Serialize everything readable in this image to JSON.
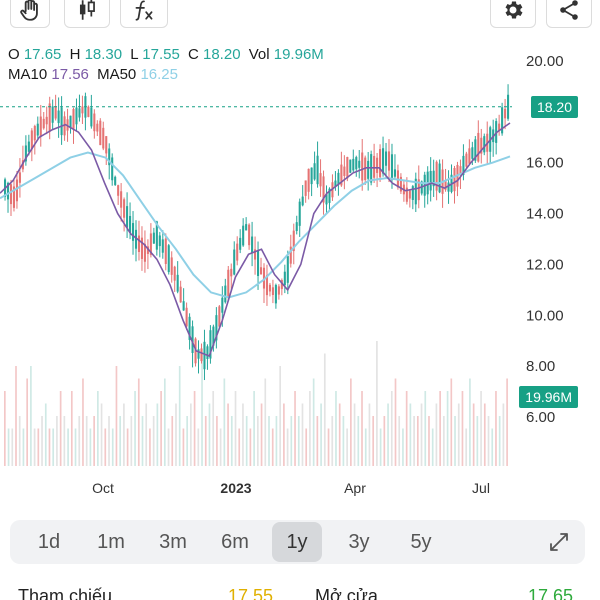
{
  "toolbar": {
    "tools": [
      {
        "icon": "hand-pan-icon"
      },
      {
        "icon": "candlestick-icon"
      },
      {
        "icon": "function-fx-icon"
      },
      {
        "icon": "gear-icon"
      },
      {
        "icon": "share-icon"
      }
    ]
  },
  "legend": {
    "o_label": "O",
    "o_value": "17.65",
    "h_label": "H",
    "h_value": "18.30",
    "l_label": "L",
    "l_value": "17.55",
    "c_label": "C",
    "c_value": "18.20",
    "vol_label": "Vol",
    "vol_value": "19.96M",
    "ma10_label": "MA10",
    "ma10_value": "17.56",
    "ma50_label": "MA50",
    "ma50_value": "16.25"
  },
  "price_tag": "18.20",
  "volume_tag": "19.96M",
  "colors": {
    "up": "#26a69a",
    "down": "#e57373",
    "ma10": "#7b5aa6",
    "ma50": "#8fd0e6",
    "accent": "#17a085"
  },
  "ranges": {
    "items": [
      "1d",
      "1m",
      "3m",
      "6m",
      "1y",
      "3y",
      "5y"
    ],
    "active": "1y"
  },
  "bottom": {
    "ref_label": "Tham chiếu",
    "ref_value": "17.55",
    "open_label": "Mở cửa",
    "open_value": "17.65"
  },
  "chart_data": {
    "type": "candlestick",
    "y_ticks": [
      "20.00",
      "16.00",
      "14.00",
      "12.00",
      "10.00",
      "8.00",
      "6.00"
    ],
    "y_tick_values": [
      20,
      16,
      14,
      12,
      10,
      8,
      6
    ],
    "ylim": [
      4,
      21
    ],
    "x_ticks": [
      "Oct",
      "2023",
      "Apr",
      "Jul"
    ],
    "last_close": 18.2,
    "close_path": [
      15.0,
      14.6,
      16.3,
      17.2,
      17.6,
      18.0,
      17.4,
      17.8,
      18.2,
      17.5,
      16.8,
      15.2,
      14.0,
      13.0,
      12.4,
      13.2,
      12.5,
      11.5,
      10.0,
      8.5,
      8.4,
      9.5,
      11.0,
      12.4,
      13.5,
      12.2,
      11.2,
      10.8,
      11.6,
      13.5,
      15.2,
      15.8,
      14.5,
      15.3,
      15.8,
      16.0,
      15.7,
      15.9,
      16.2,
      15.4,
      14.7,
      14.9,
      15.2,
      15.5,
      15.0,
      15.5,
      16.2,
      16.6,
      16.8,
      17.3,
      18.2
    ],
    "ma10_path": [
      14.8,
      15.3,
      16.2,
      17.0,
      17.3,
      17.5,
      17.2,
      16.5,
      15.2,
      14.0,
      13.2,
      12.8,
      12.2,
      11.2,
      9.8,
      8.6,
      8.4,
      9.8,
      11.5,
      12.4,
      12.6,
      11.6,
      11.0,
      12.0,
      14.0,
      14.8,
      15.2,
      15.6,
      15.8,
      15.8,
      15.2,
      14.9,
      15.0,
      15.2,
      15.0,
      15.3,
      16.0,
      16.6,
      17.2,
      17.56
    ],
    "ma50_path": [
      14.6,
      15.0,
      15.4,
      15.8,
      16.2,
      16.4,
      16.2,
      15.5,
      14.5,
      13.5,
      12.6,
      11.6,
      10.9,
      10.7,
      10.9,
      11.4,
      12.1,
      12.9,
      13.6,
      14.3,
      14.9,
      15.3,
      15.4,
      15.3,
      15.2,
      15.2,
      15.5,
      15.8,
      16.0,
      16.25
    ],
    "volumes_M": [
      6,
      3,
      3,
      8,
      4,
      3,
      7,
      8,
      3,
      3,
      4,
      5,
      3,
      3,
      4,
      6,
      4,
      3,
      6,
      3,
      4,
      7,
      4,
      3,
      4,
      6,
      5,
      3,
      4,
      3,
      8,
      4,
      5,
      3,
      4,
      6,
      7,
      4,
      5,
      3,
      4,
      5,
      6,
      7,
      3,
      4,
      5,
      8,
      3,
      4,
      5,
      6,
      3,
      9,
      4,
      5,
      6,
      4,
      3,
      7,
      5,
      4,
      6,
      3,
      5,
      4,
      3,
      6,
      4,
      5,
      7,
      4,
      3,
      4,
      8,
      5,
      3,
      4,
      6,
      4,
      5,
      3,
      6,
      7,
      4,
      5,
      9,
      3,
      4,
      6,
      5,
      4,
      3,
      7,
      5,
      4,
      6,
      3,
      5,
      4,
      10,
      3,
      4,
      5,
      6,
      7,
      4,
      3,
      6,
      5,
      4,
      4,
      5,
      6,
      4,
      3,
      5,
      6,
      4,
      6,
      7,
      4,
      5,
      6,
      3,
      7,
      5,
      4,
      6,
      5,
      4,
      3,
      6,
      4,
      5,
      7
    ]
  }
}
